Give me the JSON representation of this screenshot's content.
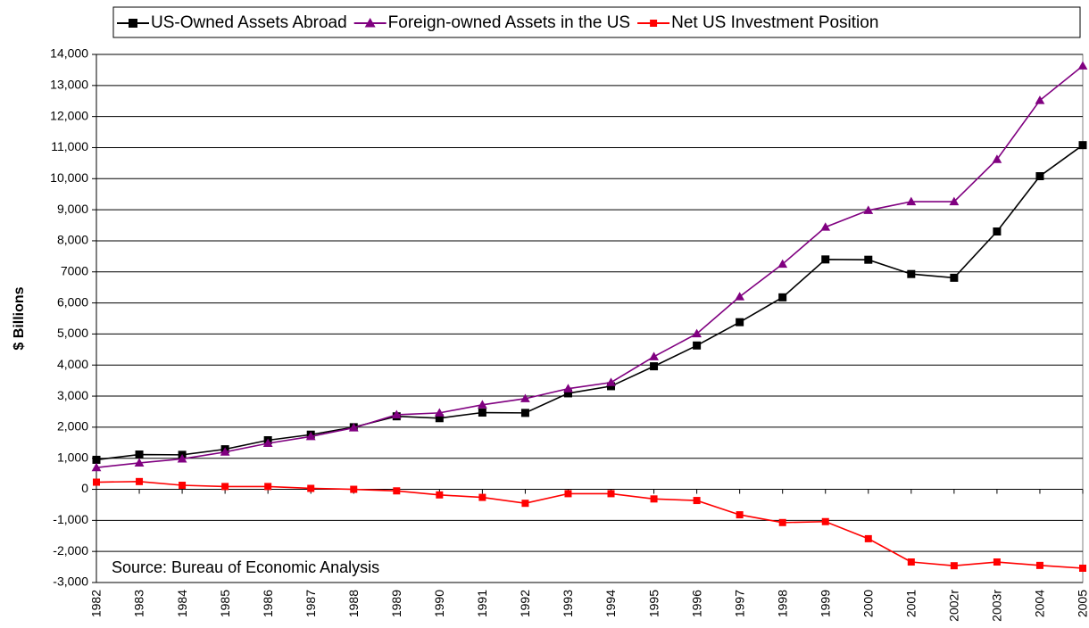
{
  "chart_data": {
    "type": "line",
    "y_label": "$ Billions",
    "annotation": "Source: Bureau of Economic Analysis",
    "categories": [
      "1982",
      "1983",
      "1984",
      "1985",
      "1986",
      "1987",
      "1988",
      "1989",
      "1990",
      "1991",
      "1992",
      "1993",
      "1994",
      "1995",
      "1996",
      "1997",
      "1998",
      "1999",
      "2000",
      "2001",
      "2002r",
      "2003r",
      "2004",
      "2005"
    ],
    "series": [
      {
        "name": "US-Owned Assets Abroad",
        "color": "#000000",
        "marker": "square",
        "values": [
          950,
          1120,
          1110,
          1290,
          1580,
          1760,
          2000,
          2350,
          2290,
          2470,
          2460,
          3090,
          3320,
          3960,
          4630,
          5380,
          6180,
          7400,
          7390,
          6930,
          6810,
          8300,
          10080,
          11080
        ]
      },
      {
        "name": "Foreign-owned Assets in the US",
        "color": "#800080",
        "marker": "triangle",
        "values": [
          700,
          850,
          980,
          1200,
          1480,
          1700,
          1980,
          2400,
          2460,
          2720,
          2920,
          3240,
          3440,
          4270,
          5010,
          6200,
          7250,
          8440,
          8980,
          9260,
          9260,
          10620,
          12520,
          13630
        ]
      },
      {
        "name": "Net US Investment Position",
        "color": "#ff0000",
        "marker": "square",
        "values": [
          230,
          250,
          130,
          90,
          90,
          30,
          0,
          -50,
          -180,
          -260,
          -450,
          -140,
          -140,
          -310,
          -360,
          -820,
          -1070,
          -1040,
          -1590,
          -2340,
          -2460,
          -2340,
          -2450,
          -2540
        ]
      }
    ],
    "ylim": [
      -3000,
      14000
    ],
    "yticks": [
      {
        "value": -3000,
        "label": "-3,000"
      },
      {
        "value": -2000,
        "label": "-2,000"
      },
      {
        "value": -1000,
        "label": "-1,000"
      },
      0,
      {
        "value": 1000,
        "label": "1,000"
      },
      {
        "value": 2000,
        "label": "2,000"
      },
      {
        "value": 3000,
        "label": "3,000"
      },
      {
        "value": 4000,
        "label": "4,000"
      },
      {
        "value": 5000,
        "label": "5,000"
      },
      {
        "value": 6000,
        "label": "6,000"
      },
      7000,
      {
        "value": 8000,
        "label": "8,000"
      },
      {
        "value": 9000,
        "label": "9,000"
      },
      {
        "value": 10000,
        "label": "10,000"
      },
      {
        "value": 11000,
        "label": "11,000"
      },
      {
        "value": 12000,
        "label": "12,000"
      },
      {
        "value": 13000,
        "label": "13,000"
      },
      {
        "value": 14000,
        "label": "14,000"
      }
    ],
    "grid": true
  }
}
